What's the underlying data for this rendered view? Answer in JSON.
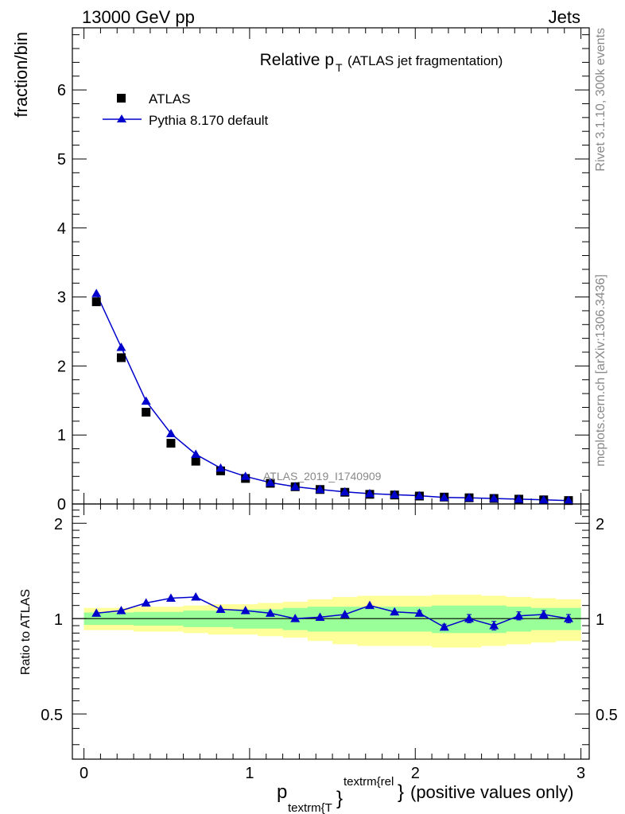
{
  "header": {
    "left": "13000 GeV pp",
    "right": "Jets"
  },
  "side": {
    "rivet": "Rivet 3.1.10,  300k events",
    "mcplots": "mcplots.cern.ch [arXiv:1306.3436]"
  },
  "chart_data": [
    {
      "type": "scatter",
      "title_main": "Relative p",
      "title_sub": "T",
      "title_rest": "(ATLAS jet fragmentation)",
      "ylabel": "fraction/bin",
      "analysis_label": "ATLAS_2019_I1740909",
      "xlim": [
        -0.07,
        3.05
      ],
      "ylim": [
        0,
        6.9
      ],
      "yticks": [
        0,
        1,
        2,
        3,
        4,
        5,
        6
      ],
      "x": [
        0.075,
        0.225,
        0.375,
        0.525,
        0.675,
        0.825,
        0.975,
        1.125,
        1.275,
        1.425,
        1.575,
        1.725,
        1.875,
        2.025,
        2.175,
        2.325,
        2.475,
        2.625,
        2.775,
        2.925
      ],
      "series": [
        {
          "name": "ATLAS",
          "marker": "square",
          "color": "#000000",
          "values": [
            2.93,
            2.12,
            1.33,
            0.88,
            0.62,
            0.48,
            0.37,
            0.3,
            0.25,
            0.21,
            0.17,
            0.14,
            0.13,
            0.115,
            0.1,
            0.09,
            0.08,
            0.07,
            0.06,
            0.05
          ]
        },
        {
          "name": "Pythia 8.170 default",
          "marker": "triangle",
          "color": "#0000cc",
          "values": [
            3.05,
            2.27,
            1.49,
            1.02,
            0.72,
            0.52,
            0.4,
            0.31,
            0.25,
            0.21,
            0.175,
            0.15,
            0.135,
            0.12,
            0.095,
            0.09,
            0.08,
            0.07,
            0.06,
            0.05
          ]
        }
      ]
    },
    {
      "type": "line",
      "ylabel": "Ratio to ATLAS",
      "xlabel_main": "p",
      "xlabel_sub": "textrm{T",
      "xlabel_sup": "textrm{rel",
      "xlabel_close": "}",
      "xlabel_rest": "(positive values only)",
      "xlim": [
        -0.07,
        3.05
      ],
      "ylim": [
        0.36,
        2.3
      ],
      "xticks": [
        0,
        1,
        2,
        3
      ],
      "yticks": [
        0.5,
        1,
        2
      ],
      "ytick_labels": [
        "0.5",
        "1",
        "2"
      ],
      "x": [
        0.075,
        0.225,
        0.375,
        0.525,
        0.675,
        0.825,
        0.975,
        1.125,
        1.275,
        1.425,
        1.575,
        1.725,
        1.875,
        2.025,
        2.175,
        2.325,
        2.475,
        2.625,
        2.775,
        2.925
      ],
      "series": [
        {
          "name": "Pythia 8.170 default",
          "color": "#0000cc",
          "values": [
            1.04,
            1.06,
            1.12,
            1.16,
            1.17,
            1.07,
            1.06,
            1.04,
            1.0,
            1.01,
            1.03,
            1.1,
            1.05,
            1.04,
            0.94,
            1.0,
            0.95,
            1.02,
            1.03,
            1.0
          ],
          "errors": [
            0,
            0,
            0,
            0,
            0,
            0,
            0,
            0,
            0,
            0,
            0,
            0,
            0,
            0.02,
            0.02,
            0.03,
            0.03,
            0.03,
            0.03,
            0.03
          ]
        }
      ],
      "band_inner_color": "#99ff99",
      "band_outer_color": "#ffff99",
      "band_inner": [
        0.045,
        0.045,
        0.05,
        0.05,
        0.06,
        0.06,
        0.07,
        0.07,
        0.08,
        0.09,
        0.09,
        0.09,
        0.09,
        0.09,
        0.1,
        0.1,
        0.1,
        0.09,
        0.08,
        0.08
      ],
      "band_outer": [
        0.08,
        0.08,
        0.09,
        0.09,
        0.1,
        0.11,
        0.11,
        0.12,
        0.13,
        0.15,
        0.17,
        0.18,
        0.18,
        0.18,
        0.19,
        0.19,
        0.18,
        0.17,
        0.16,
        0.15
      ]
    }
  ]
}
